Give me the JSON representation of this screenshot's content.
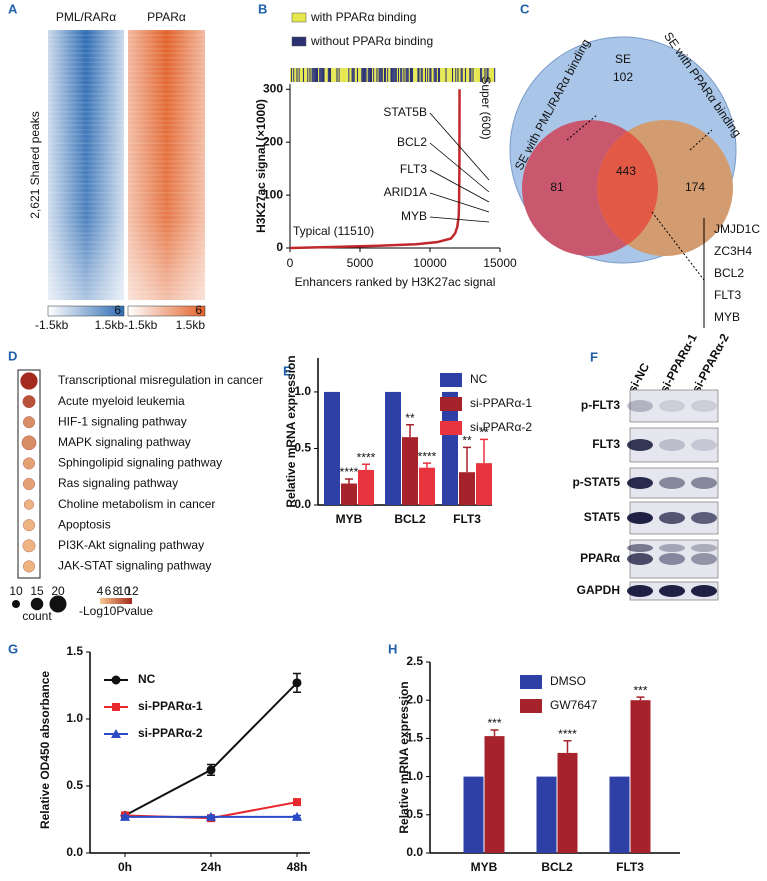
{
  "chart_data": [
    {
      "type": "heatmap",
      "panel": "A",
      "columns": [
        "PML/RARα",
        "PPARα"
      ],
      "colors": [
        "#2f6cb3",
        "#e2622a"
      ],
      "ylabel": "2,621 Shared peaks",
      "colorbar_max": [
        6,
        6
      ],
      "xlabels": [
        "-1.5kb",
        "1.5kb-1.5kb",
        "1.5kb"
      ]
    },
    {
      "type": "line",
      "panel": "B",
      "legend": [
        {
          "name": "with PPARα binding",
          "color": "#e4e64a"
        },
        {
          "name": "without PPARα binding",
          "color": "#2b3170"
        }
      ],
      "x": [
        0,
        3000,
        6000,
        9000,
        10500,
        11500,
        11800,
        11950,
        12050,
        12080,
        12100,
        12110
      ],
      "series": [
        {
          "color": "#c0282c",
          "values": [
            0,
            2,
            4,
            7,
            11,
            18,
            28,
            40,
            60,
            90,
            150,
            300
          ]
        }
      ],
      "xlim": [
        0,
        15000
      ],
      "xticks": [
        0,
        5000,
        10000,
        15000
      ],
      "ylim": [
        0,
        310
      ],
      "yticks": [
        0,
        100,
        200,
        300
      ],
      "xlabel": "Enhancers ranked by H3K27ac signal",
      "ylabel": "H3K27ac signal (×1000)",
      "annotations": [
        "STAT5B",
        "BCL2",
        "FLT3",
        "ARID1A",
        "MYB"
      ],
      "typical_label": "Typical (11510)",
      "super_label": "Super (600)"
    },
    {
      "type": "venn",
      "panel": "C",
      "sets": [
        {
          "label": "SE",
          "value": "102",
          "color": "#a9c6e8"
        },
        {
          "label": "SE with PML/RARα binding",
          "value": "81",
          "color": "#c9586e"
        },
        {
          "label": "SE with PPARα binding",
          "value": "174",
          "color": "#d39c70"
        }
      ],
      "overlap": "443",
      "overlap_color": "#e25a46",
      "genes": [
        "JMJD1C",
        "ZC3H4",
        "BCL2",
        "FLT3",
        "MYB"
      ]
    },
    {
      "type": "dot",
      "panel": "D",
      "categories": [
        "Transcriptional misregulation in cancer",
        "Acute myeloid leukemia",
        "HIF-1 signaling pathway",
        "MAPK signaling pathway",
        "Sphingolipid signaling pathway",
        "Ras signaling pathway",
        "Choline metabolism in cancer",
        "Apoptosis",
        "PI3K-Akt signaling pathway",
        "JAK-STAT signaling pathway"
      ],
      "count": [
        20,
        15,
        14,
        17,
        14,
        14,
        12,
        14,
        15,
        14
      ],
      "pvalue": [
        12,
        10,
        7,
        7,
        6,
        6,
        5,
        5,
        5,
        5
      ],
      "size_ticks": [
        10,
        15,
        20
      ],
      "size_label": "count",
      "color_ticks": [
        4,
        6,
        8,
        10,
        12
      ],
      "color_label": "-Log10Pvalue",
      "colors": [
        "#f8c890",
        "#a32a1c"
      ]
    },
    {
      "type": "bar",
      "panel": "E",
      "categories": [
        "MYB",
        "BCL2",
        "FLT3"
      ],
      "ylabel": "Relative mRNA expression",
      "ylim": [
        0,
        1.3
      ],
      "yticks": [
        {
          "value": 0,
          "label": "0.0"
        },
        {
          "value": 0.5,
          "label": "0.5"
        },
        {
          "value": 1,
          "label": "1.0"
        }
      ],
      "series": [
        {
          "name": "NC",
          "color": "#2e3fa6",
          "values": [
            1,
            1,
            1
          ]
        },
        {
          "name": "si-PPARα-1",
          "color": "#a6232c",
          "values": [
            0.19,
            0.6,
            0.29
          ],
          "errors": [
            0.04,
            0.11,
            0.22
          ],
          "annotations": [
            "****",
            "**",
            "**"
          ]
        },
        {
          "name": "si-PPARα-2",
          "color": "#e8343e",
          "values": [
            0.31,
            0.33,
            0.37
          ],
          "errors": [
            0.05,
            0.04,
            0.21
          ],
          "annotations": [
            "****",
            "****",
            "**"
          ]
        }
      ]
    },
    {
      "type": "blot",
      "panel": "F",
      "lanes": [
        "si-NC",
        "si-PPARα-1",
        "si-PPARα-2"
      ],
      "rows": [
        "p-FLT3",
        "FLT3",
        "p-STAT5",
        "STAT5",
        "PPARα",
        "GAPDH"
      ]
    },
    {
      "type": "line",
      "panel": "G",
      "categories": [
        "0h",
        "24h",
        "48h"
      ],
      "ylabel": "Relative OD450 absorbance",
      "ylim": [
        0,
        1.5
      ],
      "yticks": [
        {
          "value": 0,
          "label": "0.0"
        },
        {
          "value": 0.5,
          "label": "0.5"
        },
        {
          "value": 1,
          "label": "1.0"
        },
        {
          "value": 1.5,
          "label": "1.5"
        }
      ],
      "series": [
        {
          "name": "NC",
          "color": "#111111",
          "marker": "circle",
          "values": [
            0.28,
            0.62,
            1.27
          ],
          "errors": [
            0.01,
            0.04,
            0.07
          ]
        },
        {
          "name": "si-PPARα-1",
          "color": "#e8282c",
          "marker": "square",
          "values": [
            0.28,
            0.26,
            0.38
          ],
          "errors": [
            0.01,
            0.01,
            0.02
          ]
        },
        {
          "name": "si-PPARα-2",
          "color": "#2b4bc4",
          "marker": "triangle",
          "values": [
            0.27,
            0.27,
            0.27
          ],
          "errors": [
            0.01,
            0.01,
            0.01
          ]
        }
      ]
    },
    {
      "type": "bar",
      "panel": "H",
      "categories": [
        "MYB",
        "BCL2",
        "FLT3"
      ],
      "ylabel": "Relative mRNA expression",
      "ylim": [
        0,
        2.5
      ],
      "yticks": [
        {
          "value": 0,
          "label": "0.0"
        },
        {
          "value": 0.5,
          "label": "0.5"
        },
        {
          "value": 1,
          "label": "1.0"
        },
        {
          "value": 1.5,
          "label": "1.5"
        },
        {
          "value": 2,
          "label": "2.0"
        },
        {
          "value": 2.5,
          "label": "2.5"
        }
      ],
      "series": [
        {
          "name": "DMSO",
          "color": "#2e3fa6",
          "values": [
            1,
            1,
            1
          ]
        },
        {
          "name": "GW7647",
          "color": "#a6232c",
          "values": [
            1.53,
            1.31,
            2.0
          ],
          "errors": [
            0.08,
            0.16,
            0.04
          ],
          "annotations": [
            "***",
            "****",
            "***"
          ]
        }
      ]
    }
  ]
}
